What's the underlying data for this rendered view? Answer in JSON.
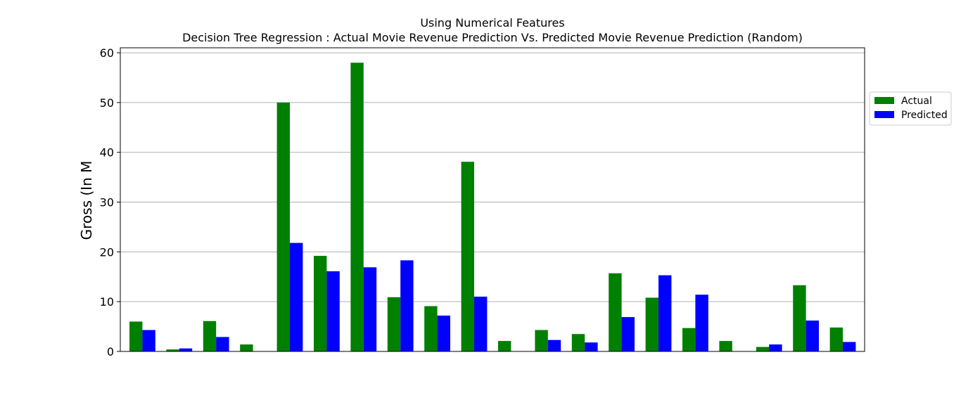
{
  "chart_data": {
    "type": "bar",
    "title": "Using Numerical Features",
    "subtitle": "Decision Tree Regression : Actual Movie Revenue Prediction Vs. Predicted Movie Revenue Prediction (Random)",
    "xlabel": "",
    "ylabel": "Gross (In M",
    "ylim": [
      0,
      61
    ],
    "yticks": [
      0,
      10,
      20,
      30,
      40,
      50,
      60
    ],
    "grid": "horizontal",
    "legend_position": "right",
    "series": [
      {
        "name": "Actual",
        "color": "#008000",
        "values": [
          6.0,
          0.4,
          6.1,
          1.4,
          50.0,
          19.2,
          58.0,
          10.9,
          9.1,
          38.1,
          2.1,
          4.3,
          3.5,
          15.7,
          10.8,
          4.7,
          2.1,
          0.9,
          13.3,
          4.8
        ]
      },
      {
        "name": "Predicted",
        "color": "#0000ff",
        "values": [
          4.3,
          0.6,
          2.9,
          0.0,
          21.8,
          16.1,
          16.9,
          18.3,
          7.2,
          11.0,
          0.0,
          2.3,
          1.8,
          6.9,
          15.3,
          11.4,
          0.0,
          1.4,
          6.2,
          1.9
        ]
      }
    ]
  }
}
